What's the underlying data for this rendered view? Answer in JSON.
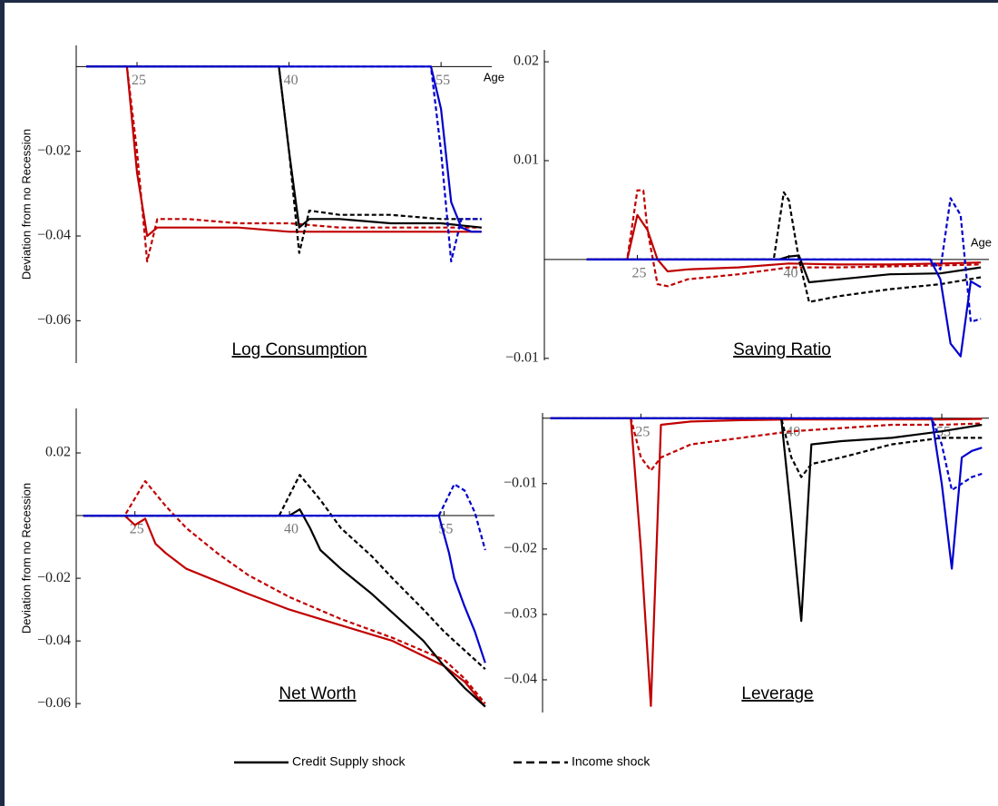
{
  "chart_data": [
    {
      "type": "line",
      "title": "Log Consumption",
      "y_label": "Deviation from no Recession",
      "x_label": "Age",
      "xlim": [
        19,
        60
      ],
      "ylim": [
        -0.07,
        0.005
      ],
      "xticks": [
        25,
        40,
        55
      ],
      "yticks": [
        {
          "value": -0.06,
          "label": "−0.06"
        },
        {
          "value": -0.04,
          "label": "−0.04"
        },
        {
          "value": -0.02,
          "label": "−0.02"
        }
      ],
      "series": [
        {
          "color": "#c00000",
          "dashed": false,
          "x": [
            20,
            24,
            25,
            26,
            27,
            30,
            35,
            40,
            45,
            50,
            55,
            59
          ],
          "values": [
            0,
            0,
            -0.025,
            -0.04,
            -0.038,
            -0.038,
            -0.038,
            -0.039,
            -0.039,
            -0.039,
            -0.039,
            -0.039
          ]
        },
        {
          "color": "#c00000",
          "dashed": true,
          "x": [
            20,
            24,
            25,
            26,
            27,
            30,
            35,
            40,
            45,
            50,
            55,
            59
          ],
          "values": [
            0,
            0,
            -0.02,
            -0.046,
            -0.036,
            -0.036,
            -0.037,
            -0.037,
            -0.038,
            -0.038,
            -0.038,
            -0.038
          ]
        },
        {
          "color": "#000000",
          "dashed": false,
          "x": [
            20,
            39,
            40,
            41,
            42,
            45,
            50,
            55,
            59
          ],
          "values": [
            0,
            0,
            -0.02,
            -0.038,
            -0.036,
            -0.036,
            -0.037,
            -0.037,
            -0.038
          ]
        },
        {
          "color": "#000000",
          "dashed": true,
          "x": [
            20,
            39,
            40,
            41,
            42,
            45,
            50,
            55,
            59
          ],
          "values": [
            0,
            0,
            -0.02,
            -0.044,
            -0.034,
            -0.035,
            -0.035,
            -0.036,
            -0.036
          ]
        },
        {
          "color": "#0000cc",
          "dashed": false,
          "x": [
            20,
            54,
            55,
            56,
            57,
            58,
            59
          ],
          "values": [
            0,
            0,
            -0.01,
            -0.032,
            -0.038,
            -0.039,
            -0.039
          ]
        },
        {
          "color": "#0000cc",
          "dashed": true,
          "x": [
            20,
            54,
            55,
            56,
            57,
            58,
            59
          ],
          "values": [
            0,
            0,
            -0.02,
            -0.046,
            -0.036,
            -0.036,
            -0.036
          ]
        }
      ]
    },
    {
      "type": "line",
      "title": "Saving Ratio",
      "x_label": "Age",
      "xlim": [
        15.8,
        59.8
      ],
      "ylim": [
        -0.0102,
        0.0212
      ],
      "xticks": [
        25,
        40
      ],
      "yticks": [
        {
          "value": -0.01,
          "label": "−0.01"
        },
        0.01,
        0.02
      ],
      "series": [
        {
          "color": "#c00000",
          "dashed": false,
          "x": [
            20,
            24,
            25,
            26,
            27,
            28,
            30,
            35,
            40,
            45,
            50,
            55,
            59
          ],
          "values": [
            0,
            0,
            0.0045,
            0.003,
            0,
            -0.0012,
            -0.001,
            -0.0008,
            -0.0004,
            -0.0005,
            -0.0005,
            -0.0004,
            -0.0003
          ]
        },
        {
          "color": "#c00000",
          "dashed": true,
          "x": [
            20,
            24,
            25,
            25.6,
            26,
            27,
            28,
            30,
            35,
            40,
            45,
            50,
            55,
            59
          ],
          "values": [
            0,
            0,
            0.007,
            0.007,
            0.003,
            -0.0025,
            -0.0027,
            -0.002,
            -0.0015,
            -0.0008,
            -0.0008,
            -0.0007,
            -0.0006,
            -0.0005
          ]
        },
        {
          "color": "#000000",
          "dashed": false,
          "x": [
            20,
            39,
            40,
            41,
            42,
            45,
            50,
            55,
            59
          ],
          "values": [
            0,
            0,
            0.0003,
            0.0004,
            -0.0023,
            -0.002,
            -0.0015,
            -0.0014,
            -0.0008
          ]
        },
        {
          "color": "#000000",
          "dashed": true,
          "x": [
            20,
            38.5,
            39.5,
            40,
            41,
            42,
            45,
            50,
            55,
            59
          ],
          "values": [
            0,
            0,
            0.0068,
            0.006,
            0,
            -0.0043,
            -0.0037,
            -0.003,
            -0.0025,
            -0.0018
          ]
        },
        {
          "color": "#0000cc",
          "dashed": false,
          "x": [
            20,
            54,
            55,
            56,
            57,
            58,
            59
          ],
          "values": [
            0,
            0,
            -0.002,
            -0.0085,
            -0.0098,
            -0.0022,
            -0.0028
          ]
        },
        {
          "color": "#0000cc",
          "dashed": true,
          "x": [
            20,
            54,
            55,
            56,
            57,
            58,
            59
          ],
          "values": [
            0,
            0,
            -0.001,
            0.0062,
            0.0045,
            -0.0063,
            -0.006
          ]
        }
      ]
    },
    {
      "type": "line",
      "title": "Net Worth",
      "y_label": "Deviation from no Recession",
      "xlim": [
        19.3,
        59.9
      ],
      "ylim": [
        -0.0614,
        0.0342
      ],
      "xticks": [
        25,
        40,
        55
      ],
      "yticks": [
        {
          "value": -0.06,
          "label": "−0.06"
        },
        {
          "value": -0.04,
          "label": "−0.04"
        },
        {
          "value": -0.02,
          "label": "−0.02"
        },
        0.02
      ],
      "series": [
        {
          "color": "#c00000",
          "dashed": false,
          "x": [
            20,
            24,
            25,
            26,
            27,
            28,
            30,
            33,
            36,
            40,
            45,
            50,
            55,
            57,
            59
          ],
          "values": [
            0,
            0,
            -0.003,
            -0.001,
            -0.009,
            -0.012,
            -0.017,
            -0.021,
            -0.025,
            -0.03,
            -0.035,
            -0.04,
            -0.048,
            -0.053,
            -0.061
          ]
        },
        {
          "color": "#c00000",
          "dashed": true,
          "x": [
            20,
            24,
            26,
            28,
            30,
            33,
            36,
            40,
            45,
            50,
            55,
            57,
            59
          ],
          "values": [
            0,
            0,
            0.011,
            0.003,
            -0.004,
            -0.012,
            -0.019,
            -0.026,
            -0.033,
            -0.039,
            -0.046,
            -0.052,
            -0.06
          ]
        },
        {
          "color": "#000000",
          "dashed": false,
          "x": [
            20,
            40,
            41,
            42,
            43,
            45,
            48,
            50,
            53,
            55,
            57,
            59
          ],
          "values": [
            0,
            0,
            0.002,
            -0.004,
            -0.011,
            -0.017,
            -0.025,
            -0.031,
            -0.04,
            -0.048,
            -0.055,
            -0.061
          ]
        },
        {
          "color": "#000000",
          "dashed": true,
          "x": [
            20,
            39,
            41,
            43,
            45,
            48,
            50,
            53,
            55,
            57,
            59
          ],
          "values": [
            0,
            0,
            0.013,
            0.005,
            -0.004,
            -0.013,
            -0.02,
            -0.03,
            -0.037,
            -0.043,
            -0.049
          ]
        },
        {
          "color": "#0000cc",
          "dashed": false,
          "x": [
            20,
            54.5,
            55.5,
            56,
            57,
            58,
            59
          ],
          "values": [
            0,
            0,
            -0.012,
            -0.02,
            -0.029,
            -0.037,
            -0.047
          ]
        },
        {
          "color": "#0000cc",
          "dashed": true,
          "x": [
            20,
            54.5,
            56,
            57,
            58,
            59
          ],
          "values": [
            0,
            0,
            0.01,
            0.008,
            0.001,
            -0.011
          ]
        }
      ]
    },
    {
      "type": "line",
      "title": "Leverage",
      "xlim": [
        15.2,
        59.7
      ],
      "ylim": [
        -0.045,
        0.0008
      ],
      "xticks": [
        25,
        40,
        55
      ],
      "yticks": [
        {
          "value": -0.04,
          "label": "−0.04"
        },
        {
          "value": -0.03,
          "label": "−0.03"
        },
        {
          "value": -0.02,
          "label": "−0.02"
        },
        {
          "value": -0.01,
          "label": "−0.01"
        }
      ],
      "series": [
        {
          "color": "#c00000",
          "dashed": false,
          "x": [
            16,
            24,
            25,
            26,
            27,
            30,
            35,
            40,
            45,
            50,
            55,
            59
          ],
          "values": [
            0,
            0,
            -0.02,
            -0.044,
            -0.001,
            -0.0005,
            -0.0003,
            -0.0002,
            -0.0002,
            -0.0002,
            -0.0002,
            -0.0001
          ]
        },
        {
          "color": "#c00000",
          "dashed": true,
          "x": [
            16,
            24,
            25,
            26,
            27,
            30,
            35,
            40,
            45,
            50,
            55,
            59
          ],
          "values": [
            0,
            0,
            -0.006,
            -0.008,
            -0.006,
            -0.004,
            -0.003,
            -0.002,
            -0.0015,
            -0.001,
            -0.001,
            -0.0008
          ]
        },
        {
          "color": "#000000",
          "dashed": false,
          "x": [
            16,
            39,
            40,
            41,
            42,
            45,
            50,
            55,
            59
          ],
          "values": [
            0,
            0,
            -0.015,
            -0.031,
            -0.004,
            -0.0035,
            -0.003,
            -0.002,
            -0.001
          ]
        },
        {
          "color": "#000000",
          "dashed": true,
          "x": [
            16,
            39,
            40,
            41,
            42,
            45,
            50,
            55,
            59
          ],
          "values": [
            0,
            0,
            -0.006,
            -0.009,
            -0.007,
            -0.006,
            -0.004,
            -0.003,
            -0.003
          ]
        },
        {
          "color": "#0000cc",
          "dashed": false,
          "x": [
            16,
            54,
            55,
            56,
            57,
            58,
            59
          ],
          "values": [
            0,
            0,
            -0.01,
            -0.023,
            -0.006,
            -0.005,
            -0.0045
          ]
        },
        {
          "color": "#0000cc",
          "dashed": true,
          "x": [
            16,
            54,
            55,
            56,
            57,
            58,
            59
          ],
          "values": [
            0,
            0,
            -0.004,
            -0.011,
            -0.01,
            -0.009,
            -0.0085
          ]
        }
      ]
    }
  ],
  "legend": [
    {
      "label": "Credit Supply shock",
      "dashed": false
    },
    {
      "label": "Income shock",
      "dashed": true
    }
  ]
}
